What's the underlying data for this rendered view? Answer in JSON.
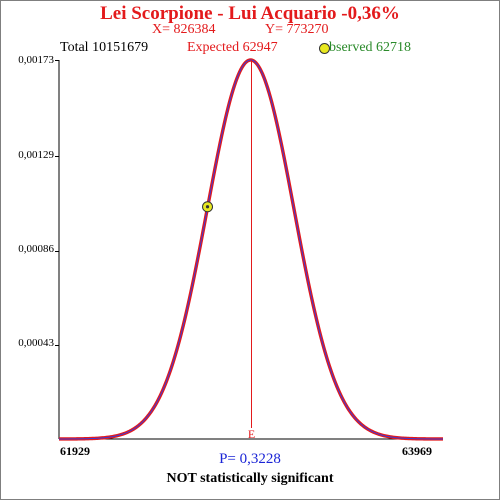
{
  "chart_data": {
    "type": "line",
    "title": "Lei Scorpione - Lui Acquario  -0,36%",
    "x_info": "X= 826384",
    "y_info": "Y= 773270",
    "total_label": "Total  10151679",
    "expected_label": "Expected  62947",
    "observed_label": "bserved  62718",
    "expected": 62947,
    "observed": 62718,
    "total": 10151679,
    "xlim": [
      61929,
      63969
    ],
    "x_tick_labels": [
      "61929",
      "63969"
    ],
    "ylim": [
      0,
      0.00173
    ],
    "y_tick_labels": [
      "0,00173",
      "0,00129",
      "0,00086",
      "0,00043"
    ],
    "y_tick_values": [
      0.00173,
      0.00129,
      0.00086,
      0.00043
    ],
    "peak_density": 0.00173,
    "sigma": 230.5,
    "observed_density": 0.00106,
    "expected_marker": "E",
    "p_value_label": "P= 0,3228",
    "significance_label": "NOT statistically significant",
    "colors": {
      "curve_outer": "#e31a1c",
      "curve_inner": "#3b3bd6",
      "expected_line": "#e31a1c",
      "observed_marker": "#e8e820",
      "observed_text": "#2a8a2a",
      "p_value": "#1a24d6"
    }
  }
}
